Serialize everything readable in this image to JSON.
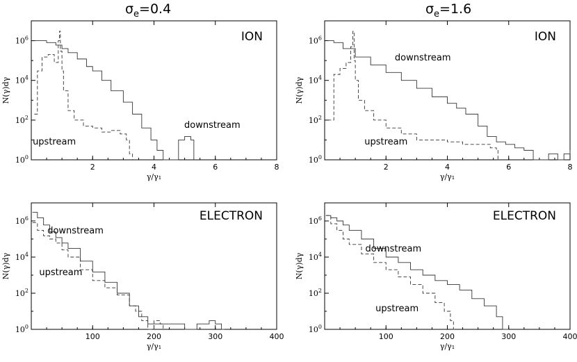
{
  "figure": {
    "col_titles": [
      {
        "sym": "σ",
        "sub": "e",
        "rest": "=0.4"
      },
      {
        "sym": "σ",
        "sub": "e",
        "rest": "=1.6"
      }
    ]
  },
  "chart_data": [
    {
      "type": "line",
      "panel_label": "ION",
      "xlabel": "γ/γ₁",
      "ylabel": "N(γ)dγ",
      "y_scale": "log",
      "xlim": [
        0,
        8
      ],
      "ylim": [
        1,
        10000000
      ],
      "x_ticks": [
        "2",
        "4",
        "6",
        "8"
      ],
      "y_ticks": [
        {
          "base": "10",
          "exp": "0"
        },
        {
          "base": "10",
          "exp": "2"
        },
        {
          "base": "10",
          "exp": "4"
        },
        {
          "base": "10",
          "exp": "6"
        }
      ],
      "series": [
        {
          "name": "downstream",
          "style": "solid",
          "x": [
            0.1,
            0.3,
            0.5,
            0.8,
            1.0,
            1.2,
            1.5,
            1.8,
            2.0,
            2.3,
            2.6,
            3.0,
            3.3,
            3.6,
            3.9,
            4.1,
            4.3,
            4.45,
            4.6,
            4.8,
            5.0,
            5.2,
            5.3
          ],
          "y": [
            1000000,
            1000000,
            800000,
            600000,
            400000,
            250000,
            120000,
            50000,
            30000,
            10000,
            3000,
            800,
            200,
            40,
            10,
            3,
            1,
            1,
            1,
            10,
            15,
            10,
            1
          ]
        },
        {
          "name": "upstream",
          "style": "dashed",
          "x": [
            0.1,
            0.2,
            0.35,
            0.55,
            0.75,
            0.88,
            0.92,
            0.95,
            1.0,
            1.05,
            1.2,
            1.4,
            1.7,
            2.0,
            2.3,
            2.6,
            2.9,
            3.1,
            3.2,
            3.3
          ],
          "y": [
            200,
            30000,
            150000,
            200000,
            80000,
            1000000,
            3000000,
            300000,
            30000,
            3000,
            300,
            100,
            50,
            40,
            25,
            30,
            20,
            10,
            2,
            1
          ]
        }
      ],
      "annotations": [
        {
          "text": "downstream",
          "x": 5.9,
          "y": 40
        },
        {
          "text": "upstream",
          "x": 0.75,
          "y": 6
        }
      ]
    },
    {
      "type": "line",
      "panel_label": "ION",
      "xlabel": "γ/γ₁",
      "ylabel": "N(γ)dγ",
      "y_scale": "log",
      "xlim": [
        0,
        8
      ],
      "ylim": [
        1,
        10000000
      ],
      "x_ticks": [
        "2",
        "4",
        "6",
        "8"
      ],
      "y_ticks": [
        {
          "base": "10",
          "exp": "0"
        },
        {
          "base": "10",
          "exp": "2"
        },
        {
          "base": "10",
          "exp": "4"
        },
        {
          "base": "10",
          "exp": "6"
        }
      ],
      "series": [
        {
          "name": "downstream",
          "style": "solid",
          "x": [
            0.1,
            0.3,
            0.6,
            1.0,
            1.5,
            2.0,
            2.5,
            3.0,
            3.5,
            4.0,
            4.3,
            4.6,
            5.0,
            5.3,
            5.6,
            5.9,
            6.2,
            6.5,
            6.8,
            7.0,
            7.3,
            7.6,
            7.8,
            8.0
          ],
          "y": [
            1000000,
            800000,
            400000,
            150000,
            60000,
            25000,
            10000,
            4000,
            1500,
            700,
            400,
            200,
            50,
            15,
            8,
            6,
            4,
            3,
            1,
            1,
            2,
            1,
            2,
            3
          ]
        },
        {
          "name": "upstream",
          "style": "dashed",
          "x": [
            0.1,
            0.3,
            0.5,
            0.7,
            0.85,
            0.92,
            0.96,
            1.0,
            1.1,
            1.3,
            1.6,
            2.0,
            2.5,
            3.0,
            3.5,
            4.0,
            4.5,
            5.0,
            5.4,
            5.6,
            5.65
          ],
          "y": [
            100,
            20000,
            40000,
            80000,
            500000,
            3000000,
            100000,
            10000,
            1000,
            300,
            100,
            40,
            20,
            10,
            10,
            8,
            6,
            6,
            4,
            3,
            1
          ]
        }
      ],
      "annotations": [
        {
          "text": "downstream",
          "x": 3.2,
          "y": 100000
        },
        {
          "text": "upstream",
          "x": 2.0,
          "y": 6
        }
      ]
    },
    {
      "type": "line",
      "panel_label": "ELECTRON",
      "xlabel": "γ/γ₁",
      "ylabel": "N(γ)dγ",
      "y_scale": "log",
      "xlim": [
        0,
        400
      ],
      "ylim": [
        1,
        10000000
      ],
      "x_ticks": [
        "100",
        "200",
        "300",
        "400"
      ],
      "y_ticks": [
        {
          "base": "10",
          "exp": "0"
        },
        {
          "base": "10",
          "exp": "2"
        },
        {
          "base": "10",
          "exp": "4"
        },
        {
          "base": "10",
          "exp": "6"
        }
      ],
      "series": [
        {
          "name": "downstream",
          "style": "solid",
          "x": [
            2,
            10,
            20,
            30,
            40,
            50,
            60,
            80,
            100,
            120,
            140,
            160,
            175,
            190,
            210,
            230,
            250,
            270,
            290,
            300,
            310,
            315
          ],
          "y": [
            3000000,
            1500000,
            600000,
            250000,
            120000,
            60000,
            30000,
            6000,
            1500,
            400,
            100,
            20,
            5,
            2,
            2,
            2,
            1,
            2,
            3,
            2,
            1,
            1
          ]
        },
        {
          "name": "upstream",
          "style": "dashed",
          "x": [
            2,
            10,
            20,
            30,
            40,
            50,
            60,
            80,
            100,
            120,
            140,
            160,
            170,
            180,
            190,
            200,
            210,
            215
          ],
          "y": [
            800000,
            300000,
            150000,
            100000,
            60000,
            25000,
            10000,
            2000,
            500,
            200,
            80,
            20,
            10,
            3,
            1,
            3,
            2,
            1
          ]
        }
      ],
      "annotations": [
        {
          "text": "downstream",
          "x": 72,
          "y": 200000
        },
        {
          "text": "upstream",
          "x": 48,
          "y": 1000
        }
      ]
    },
    {
      "type": "line",
      "panel_label": "ELECTRON",
      "xlabel": "γ/γ₁",
      "ylabel": "N(γ)dγ",
      "y_scale": "log",
      "xlim": [
        0,
        400
      ],
      "ylim": [
        1,
        10000000
      ],
      "x_ticks": [
        "100",
        "200",
        "300",
        "400"
      ],
      "y_ticks": [
        {
          "base": "10",
          "exp": "0"
        },
        {
          "base": "10",
          "exp": "2"
        },
        {
          "base": "10",
          "exp": "4"
        },
        {
          "base": "10",
          "exp": "6"
        }
      ],
      "series": [
        {
          "name": "downstream",
          "style": "solid",
          "x": [
            2,
            10,
            20,
            30,
            40,
            60,
            80,
            100,
            120,
            140,
            160,
            180,
            200,
            220,
            240,
            260,
            280,
            290,
            300
          ],
          "y": [
            2000000,
            1500000,
            1000000,
            600000,
            300000,
            100000,
            30000,
            10000,
            5000,
            2000,
            1000,
            500,
            300,
            150,
            50,
            20,
            5,
            1,
            1
          ]
        },
        {
          "name": "upstream",
          "style": "dashed",
          "x": [
            2,
            10,
            20,
            30,
            40,
            60,
            80,
            100,
            120,
            140,
            160,
            180,
            195,
            205,
            210,
            215
          ],
          "y": [
            2000000,
            700000,
            300000,
            100000,
            50000,
            15000,
            5000,
            2000,
            800,
            300,
            100,
            30,
            10,
            3,
            1,
            1
          ]
        }
      ],
      "annotations": [
        {
          "text": "downstream",
          "x": 112,
          "y": 20000
        },
        {
          "text": "upstream",
          "x": 118,
          "y": 10
        }
      ]
    }
  ]
}
